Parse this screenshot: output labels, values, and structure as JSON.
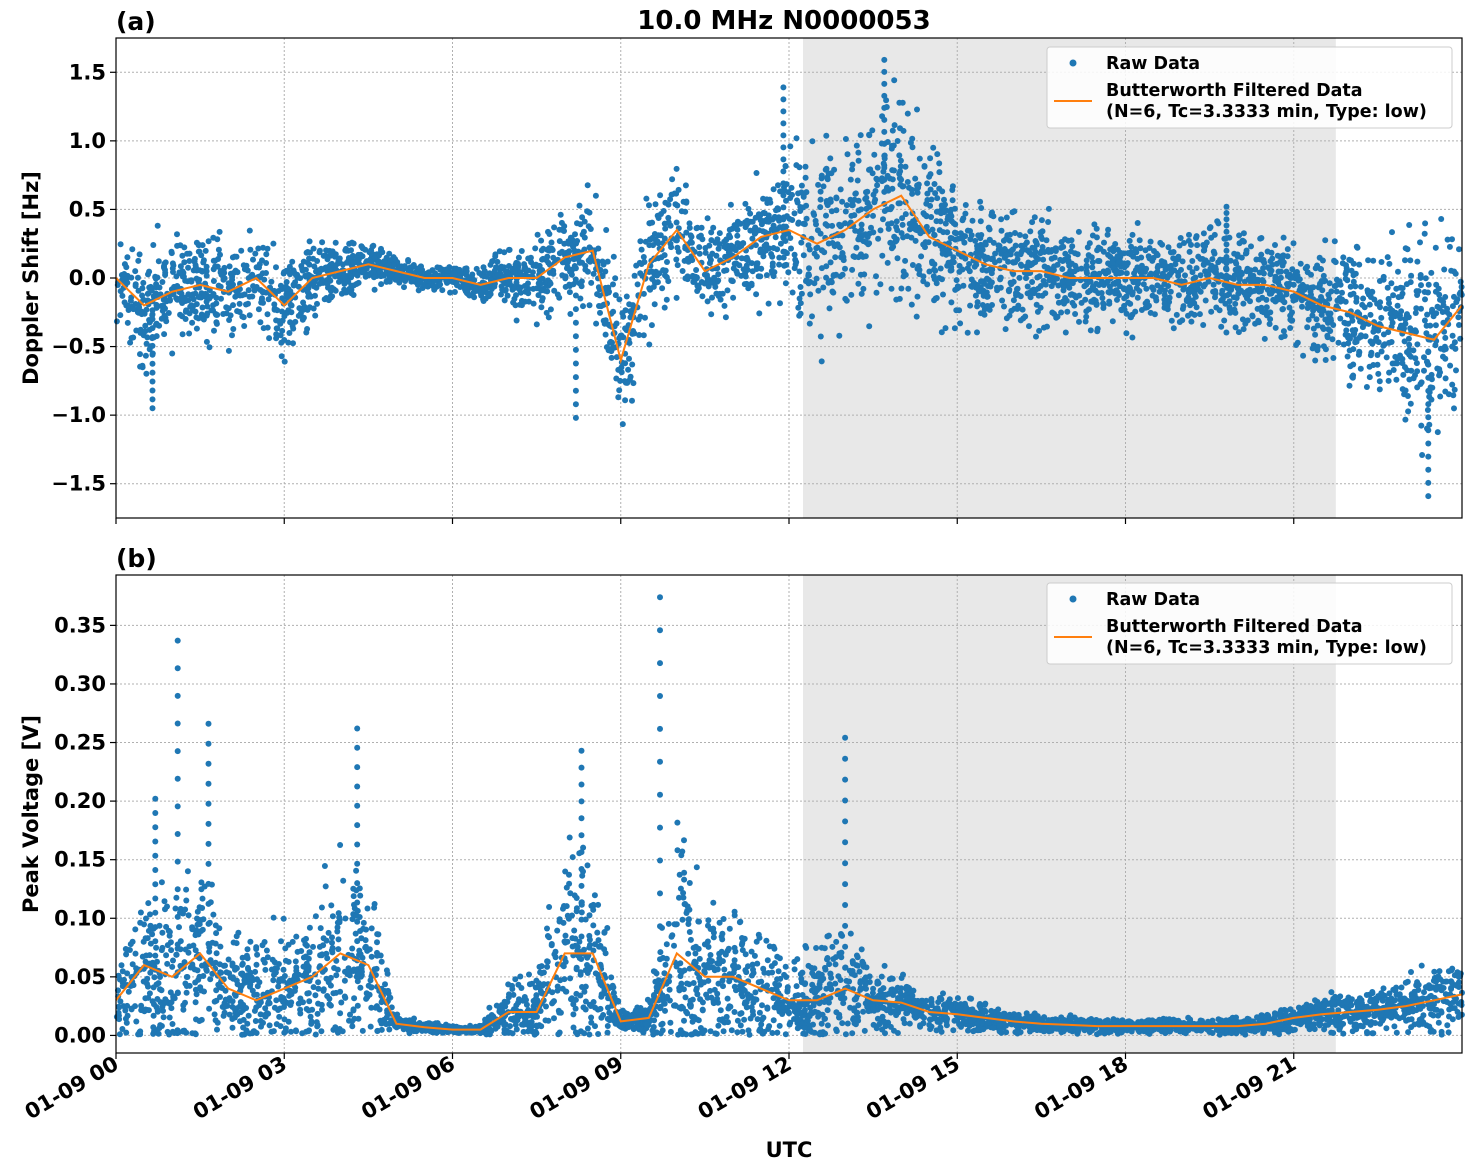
{
  "figure": {
    "title": "10.0 MHz N0000053",
    "xlabel": "UTC"
  },
  "chart_data": [
    {
      "type": "scatter",
      "panel_label": "(a)",
      "ylabel": "Doppler Shift [Hz]",
      "x_range": [
        "01-09 00:00",
        "01-10 00:00"
      ],
      "ylim": [
        -1.75,
        1.75
      ],
      "yticks": [
        -1.5,
        -1.0,
        -0.5,
        0.0,
        0.5,
        1.0,
        1.5
      ],
      "ytick_labels": [
        "−1.5",
        "−1.0",
        "−0.5",
        "0.0",
        "0.5",
        "1.0",
        "1.5"
      ],
      "xticks": [
        "01-09 00",
        "01-09 03",
        "01-09 06",
        "01-09 09",
        "01-09 12",
        "01-09 15",
        "01-09 18",
        "01-09 21"
      ],
      "grid": true,
      "legend_position": "upper-right",
      "shaded_interval_hours": [
        12.25,
        21.75
      ],
      "series": [
        {
          "name": "Raw Data",
          "kind": "points",
          "color": "#1f77b4",
          "x_hours": [
            0.0,
            0.5,
            1.0,
            1.5,
            2.0,
            2.5,
            3.0,
            3.5,
            4.0,
            4.5,
            5.0,
            5.5,
            6.0,
            6.5,
            7.0,
            7.5,
            8.0,
            8.5,
            9.0,
            9.5,
            10.0,
            10.5,
            11.0,
            11.5,
            12.0,
            12.5,
            13.0,
            13.5,
            14.0,
            14.5,
            15.0,
            15.5,
            16.0,
            16.5,
            17.0,
            17.5,
            18.0,
            18.5,
            19.0,
            19.5,
            20.0,
            20.5,
            21.0,
            21.5,
            22.0,
            22.5,
            23.0,
            23.5,
            24.0
          ],
          "center": [
            0.0,
            -0.2,
            -0.1,
            -0.05,
            -0.1,
            0.0,
            -0.2,
            0.0,
            0.05,
            0.1,
            0.05,
            0.0,
            0.0,
            -0.05,
            0.0,
            0.0,
            0.15,
            0.2,
            -0.6,
            0.1,
            0.35,
            0.05,
            0.15,
            0.3,
            0.35,
            0.25,
            0.35,
            0.5,
            0.6,
            0.3,
            0.2,
            0.1,
            0.05,
            0.05,
            0.0,
            0.0,
            0.0,
            0.0,
            -0.05,
            0.0,
            -0.05,
            -0.05,
            -0.1,
            -0.2,
            -0.25,
            -0.35,
            -0.4,
            -0.45,
            -0.2
          ],
          "spread": [
            0.25,
            0.35,
            0.3,
            0.25,
            0.25,
            0.25,
            0.25,
            0.2,
            0.15,
            0.1,
            0.08,
            0.06,
            0.06,
            0.1,
            0.15,
            0.2,
            0.3,
            0.3,
            0.35,
            0.35,
            0.3,
            0.25,
            0.25,
            0.3,
            0.4,
            0.45,
            0.45,
            0.5,
            0.5,
            0.4,
            0.35,
            0.3,
            0.3,
            0.3,
            0.25,
            0.25,
            0.25,
            0.25,
            0.25,
            0.25,
            0.25,
            0.25,
            0.25,
            0.3,
            0.35,
            0.4,
            0.45,
            0.5,
            0.4
          ],
          "extremes": [
            {
              "x_hours": 11.9,
              "y": 1.39
            },
            {
              "x_hours": 13.7,
              "y": 1.59
            },
            {
              "x_hours": 23.4,
              "y": -1.59
            },
            {
              "x_hours": 8.2,
              "y": -1.02
            },
            {
              "x_hours": 0.65,
              "y": -0.95
            },
            {
              "x_hours": 19.8,
              "y": 0.52
            }
          ]
        },
        {
          "name": "Butterworth Filtered Data\n(N=6, Tc=3.3333 min, Type: low)",
          "kind": "line",
          "color": "#ff7f0e",
          "x_hours": [
            0.0,
            0.5,
            1.0,
            1.5,
            2.0,
            2.5,
            3.0,
            3.5,
            4.0,
            4.5,
            5.0,
            5.5,
            6.0,
            6.5,
            7.0,
            7.5,
            8.0,
            8.5,
            9.0,
            9.5,
            10.0,
            10.5,
            11.0,
            11.5,
            12.0,
            12.5,
            13.0,
            13.5,
            14.0,
            14.5,
            15.0,
            15.5,
            16.0,
            16.5,
            17.0,
            17.5,
            18.0,
            18.5,
            19.0,
            19.5,
            20.0,
            20.5,
            21.0,
            21.5,
            22.0,
            22.5,
            23.0,
            23.5,
            24.0
          ],
          "y": [
            0.0,
            -0.2,
            -0.1,
            -0.05,
            -0.1,
            0.0,
            -0.2,
            0.0,
            0.05,
            0.1,
            0.05,
            0.0,
            0.0,
            -0.05,
            0.0,
            0.0,
            0.15,
            0.2,
            -0.6,
            0.1,
            0.35,
            0.05,
            0.15,
            0.3,
            0.35,
            0.25,
            0.35,
            0.5,
            0.6,
            0.3,
            0.2,
            0.1,
            0.05,
            0.05,
            0.0,
            0.0,
            0.0,
            0.0,
            -0.05,
            0.0,
            -0.05,
            -0.05,
            -0.1,
            -0.2,
            -0.25,
            -0.35,
            -0.4,
            -0.45,
            -0.2
          ]
        }
      ]
    },
    {
      "type": "scatter",
      "panel_label": "(b)",
      "ylabel": "Peak Voltage [V]",
      "x_range": [
        "01-09 00:00",
        "01-10 00:00"
      ],
      "ylim": [
        -0.015,
        0.393
      ],
      "yticks": [
        0.0,
        0.05,
        0.1,
        0.15,
        0.2,
        0.25,
        0.3,
        0.35
      ],
      "ytick_labels": [
        "0.00",
        "0.05",
        "0.10",
        "0.15",
        "0.20",
        "0.25",
        "0.30",
        "0.35"
      ],
      "xticks": [
        "01-09 00",
        "01-09 03",
        "01-09 06",
        "01-09 09",
        "01-09 12",
        "01-09 15",
        "01-09 18",
        "01-09 21"
      ],
      "grid": true,
      "legend_position": "upper-right",
      "shaded_interval_hours": [
        12.25,
        21.75
      ],
      "series": [
        {
          "name": "Raw Data",
          "kind": "points",
          "color": "#1f77b4",
          "x_hours": [
            0.0,
            0.5,
            1.0,
            1.5,
            2.0,
            2.5,
            3.0,
            3.5,
            4.0,
            4.5,
            5.0,
            5.5,
            6.0,
            6.5,
            7.0,
            7.5,
            8.0,
            8.5,
            9.0,
            9.5,
            10.0,
            10.5,
            11.0,
            11.5,
            12.0,
            12.5,
            13.0,
            13.5,
            14.0,
            14.5,
            15.0,
            15.5,
            16.0,
            16.5,
            17.0,
            17.5,
            18.0,
            18.5,
            19.0,
            19.5,
            20.0,
            20.5,
            21.0,
            21.5,
            22.0,
            22.5,
            23.0,
            23.5,
            24.0
          ],
          "center": [
            0.03,
            0.06,
            0.05,
            0.07,
            0.04,
            0.03,
            0.04,
            0.05,
            0.07,
            0.06,
            0.01,
            0.007,
            0.005,
            0.005,
            0.02,
            0.02,
            0.07,
            0.07,
            0.012,
            0.015,
            0.07,
            0.05,
            0.05,
            0.04,
            0.03,
            0.03,
            0.04,
            0.03,
            0.028,
            0.02,
            0.018,
            0.015,
            0.012,
            0.01,
            0.009,
            0.008,
            0.008,
            0.008,
            0.008,
            0.008,
            0.008,
            0.01,
            0.015,
            0.018,
            0.02,
            0.022,
            0.025,
            0.03,
            0.035
          ],
          "spread": [
            0.02,
            0.05,
            0.05,
            0.06,
            0.03,
            0.03,
            0.035,
            0.04,
            0.06,
            0.05,
            0.005,
            0.003,
            0.002,
            0.003,
            0.02,
            0.02,
            0.06,
            0.06,
            0.005,
            0.01,
            0.07,
            0.05,
            0.04,
            0.035,
            0.02,
            0.03,
            0.04,
            0.02,
            0.015,
            0.012,
            0.01,
            0.008,
            0.006,
            0.005,
            0.005,
            0.004,
            0.004,
            0.004,
            0.004,
            0.004,
            0.005,
            0.006,
            0.008,
            0.01,
            0.012,
            0.015,
            0.018,
            0.02,
            0.02
          ],
          "extremes": [
            {
              "x_hours": 1.1,
              "y": 0.337
            },
            {
              "x_hours": 1.65,
              "y": 0.266
            },
            {
              "x_hours": 4.3,
              "y": 0.262
            },
            {
              "x_hours": 9.7,
              "y": 0.374
            },
            {
              "x_hours": 13.0,
              "y": 0.254
            },
            {
              "x_hours": 8.3,
              "y": 0.243
            },
            {
              "x_hours": 0.7,
              "y": 0.202
            }
          ]
        },
        {
          "name": "Butterworth Filtered Data\n(N=6, Tc=3.3333 min, Type: low)",
          "kind": "line",
          "color": "#ff7f0e",
          "x_hours": [
            0.0,
            0.5,
            1.0,
            1.5,
            2.0,
            2.5,
            3.0,
            3.5,
            4.0,
            4.5,
            5.0,
            5.5,
            6.0,
            6.5,
            7.0,
            7.5,
            8.0,
            8.5,
            9.0,
            9.5,
            10.0,
            10.5,
            11.0,
            11.5,
            12.0,
            12.5,
            13.0,
            13.5,
            14.0,
            14.5,
            15.0,
            15.5,
            16.0,
            16.5,
            17.0,
            17.5,
            18.0,
            18.5,
            19.0,
            19.5,
            20.0,
            20.5,
            21.0,
            21.5,
            22.0,
            22.5,
            23.0,
            23.5,
            24.0
          ],
          "y": [
            0.03,
            0.06,
            0.05,
            0.07,
            0.04,
            0.03,
            0.04,
            0.05,
            0.07,
            0.06,
            0.01,
            0.007,
            0.005,
            0.005,
            0.02,
            0.02,
            0.07,
            0.07,
            0.012,
            0.015,
            0.07,
            0.05,
            0.05,
            0.04,
            0.03,
            0.03,
            0.04,
            0.03,
            0.028,
            0.02,
            0.018,
            0.015,
            0.012,
            0.01,
            0.009,
            0.008,
            0.008,
            0.008,
            0.008,
            0.008,
            0.008,
            0.01,
            0.015,
            0.018,
            0.02,
            0.022,
            0.025,
            0.03,
            0.035
          ]
        }
      ]
    }
  ],
  "colors": {
    "raw": "#1f77b4",
    "filtered": "#ff7f0e",
    "shade": "#e8e8e8"
  }
}
